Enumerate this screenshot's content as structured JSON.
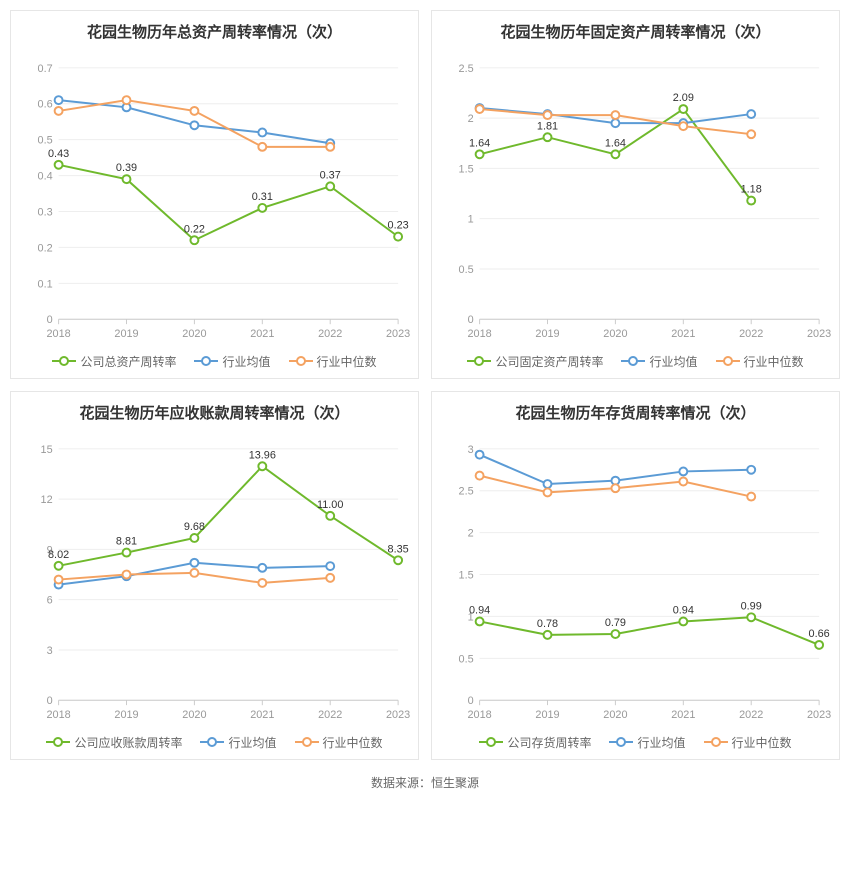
{
  "layout": {
    "rows": 2,
    "cols": 2,
    "panel_border_color": "#e6e6e6",
    "background_color": "#ffffff"
  },
  "footer_text": "数据来源：恒生聚源",
  "typography": {
    "title_fontsize": 15,
    "axis_fontsize": 11,
    "label_fontsize": 11,
    "legend_fontsize": 12,
    "title_color": "#333333",
    "axis_color": "#999999",
    "label_color": "#333333",
    "grid_color": "#eeeeee"
  },
  "series_colors": {
    "company": "#6fb92c",
    "industry_mean": "#5b9bd5",
    "industry_median": "#f4a261"
  },
  "marker": {
    "style": "hollow-circle",
    "radius": 4,
    "stroke_width": 2,
    "line_width": 2
  },
  "charts": [
    {
      "id": "total_asset_turnover",
      "title": "花园生物历年总资产周转率情况（次）",
      "type": "line",
      "categories": [
        "2018",
        "2019",
        "2020",
        "2021",
        "2022",
        "2023"
      ],
      "ylim": [
        0,
        0.7
      ],
      "ytick_step": 0.1,
      "y_decimals": 1,
      "series": [
        {
          "key": "company",
          "name": "公司总资产周转率",
          "values": [
            0.43,
            0.39,
            0.22,
            0.31,
            0.37,
            0.23
          ],
          "show_labels": true
        },
        {
          "key": "industry_mean",
          "name": "行业均值",
          "values": [
            0.61,
            0.59,
            0.54,
            0.52,
            0.49,
            null
          ],
          "show_labels": false
        },
        {
          "key": "industry_median",
          "name": "行业中位数",
          "values": [
            0.58,
            0.61,
            0.58,
            0.48,
            0.48,
            null
          ],
          "show_labels": false
        }
      ]
    },
    {
      "id": "fixed_asset_turnover",
      "title": "花园生物历年固定资产周转率情况（次）",
      "type": "line",
      "categories": [
        "2018",
        "2019",
        "2020",
        "2021",
        "2022",
        "2023"
      ],
      "ylim": [
        0,
        2.5
      ],
      "ytick_step": 0.5,
      "y_decimals": 1,
      "series": [
        {
          "key": "company",
          "name": "公司固定资产周转率",
          "values": [
            1.64,
            1.81,
            1.64,
            2.09,
            1.18,
            null
          ],
          "show_labels": true
        },
        {
          "key": "industry_mean",
          "name": "行业均值",
          "values": [
            2.1,
            2.04,
            1.95,
            1.95,
            2.04,
            null
          ],
          "show_labels": false
        },
        {
          "key": "industry_median",
          "name": "行业中位数",
          "values": [
            2.09,
            2.03,
            2.03,
            1.92,
            1.84,
            null
          ],
          "show_labels": false
        }
      ]
    },
    {
      "id": "receivables_turnover",
      "title": "花园生物历年应收账款周转率情况（次）",
      "type": "line",
      "categories": [
        "2018",
        "2019",
        "2020",
        "2021",
        "2022",
        "2023"
      ],
      "ylim": [
        0,
        15
      ],
      "ytick_step": 3,
      "y_decimals": 0,
      "series": [
        {
          "key": "company",
          "name": "公司应收账款周转率",
          "values": [
            8.02,
            8.81,
            9.68,
            13.96,
            11.0,
            8.35
          ],
          "show_labels": true
        },
        {
          "key": "industry_mean",
          "name": "行业均值",
          "values": [
            6.9,
            7.4,
            8.2,
            7.9,
            8.0,
            null
          ],
          "show_labels": false
        },
        {
          "key": "industry_median",
          "name": "行业中位数",
          "values": [
            7.2,
            7.5,
            7.6,
            7.0,
            7.3,
            null
          ],
          "show_labels": false
        }
      ]
    },
    {
      "id": "inventory_turnover",
      "title": "花园生物历年存货周转率情况（次）",
      "type": "line",
      "categories": [
        "2018",
        "2019",
        "2020",
        "2021",
        "2022",
        "2023"
      ],
      "ylim": [
        0,
        3
      ],
      "ytick_step": 0.5,
      "y_decimals": 1,
      "series": [
        {
          "key": "company",
          "name": "公司存货周转率",
          "values": [
            0.94,
            0.78,
            0.79,
            0.94,
            0.99,
            0.66
          ],
          "show_labels": true
        },
        {
          "key": "industry_mean",
          "name": "行业均值",
          "values": [
            2.93,
            2.58,
            2.62,
            2.73,
            2.75,
            null
          ],
          "show_labels": false
        },
        {
          "key": "industry_median",
          "name": "行业中位数",
          "values": [
            2.68,
            2.48,
            2.53,
            2.61,
            2.43,
            null
          ],
          "show_labels": false
        }
      ]
    }
  ]
}
